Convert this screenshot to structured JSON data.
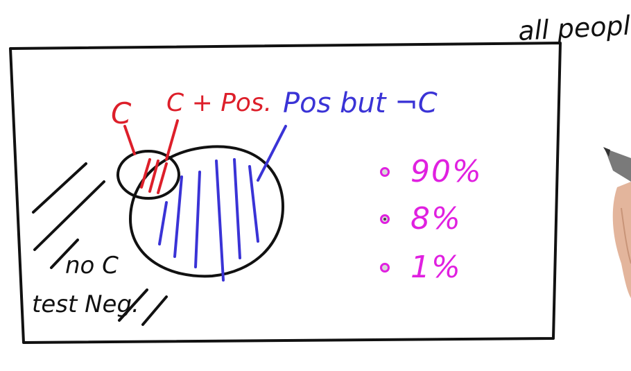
{
  "labels": {
    "all_people": "all people",
    "cancer": "C",
    "cancer_pos": "C + Pos.",
    "pos_not_cancer": "Pos but ¬C",
    "no_c": "no C",
    "test_neg": "test Neg."
  },
  "options": [
    {
      "label": "90%",
      "selected": false
    },
    {
      "label": "8%",
      "selected": true
    },
    {
      "label": "1%",
      "selected": false
    }
  ],
  "colors": {
    "ink": "#111111",
    "red": "#dd1f2a",
    "blue": "#3a33d6",
    "magenta": "#e020e0"
  }
}
